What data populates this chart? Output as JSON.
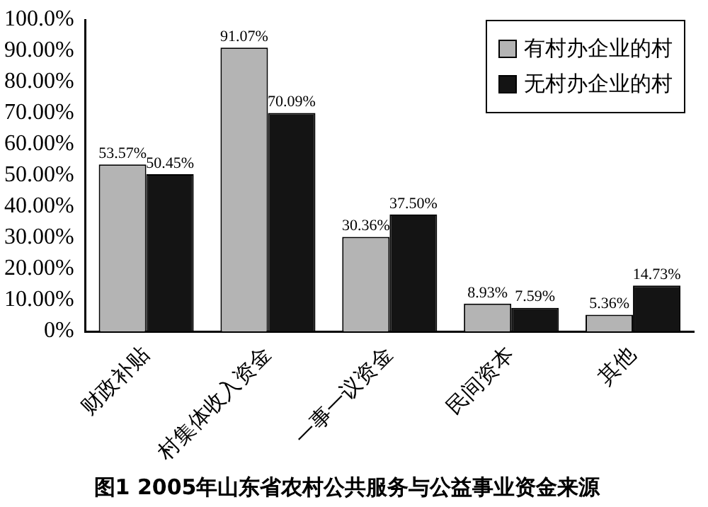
{
  "chart_data": {
    "type": "bar",
    "title": "图1 2005年山东省农村公共服务与公益事业资金来源",
    "categories": [
      "财政补贴",
      "村集体收入资金",
      "一事一议资金",
      "民间资本",
      "其他"
    ],
    "series": [
      {
        "name": "有村办企业的村",
        "color": "#b4b4b4",
        "values": [
          53.57,
          91.07,
          30.36,
          8.93,
          5.36
        ],
        "value_labels": [
          "53.57%",
          "91.07%",
          "30.36%",
          "8.93%",
          "5.36%"
        ]
      },
      {
        "name": "无村办企业的村",
        "color": "#141414",
        "values": [
          50.45,
          70.09,
          37.5,
          7.59,
          14.73
        ],
        "value_labels": [
          "50.45%",
          "70.09%",
          "37.50%",
          "7.59%",
          "14.73%"
        ]
      }
    ],
    "ylim": [
      0,
      100
    ],
    "yticks": [
      {
        "value": 0,
        "label": "0%"
      },
      {
        "value": 10,
        "label": "10.00%"
      },
      {
        "value": 20,
        "label": "20.00%"
      },
      {
        "value": 30,
        "label": "30.00%"
      },
      {
        "value": 40,
        "label": "40.00%"
      },
      {
        "value": 50,
        "label": "50.00%"
      },
      {
        "value": 60,
        "label": "60.00%"
      },
      {
        "value": 70,
        "label": "70.00%"
      },
      {
        "value": 80,
        "label": "80.00%"
      },
      {
        "value": 90,
        "label": "90.00%"
      },
      {
        "value": 100,
        "label": "100.0%"
      }
    ],
    "grid": false,
    "legend": "top right"
  }
}
